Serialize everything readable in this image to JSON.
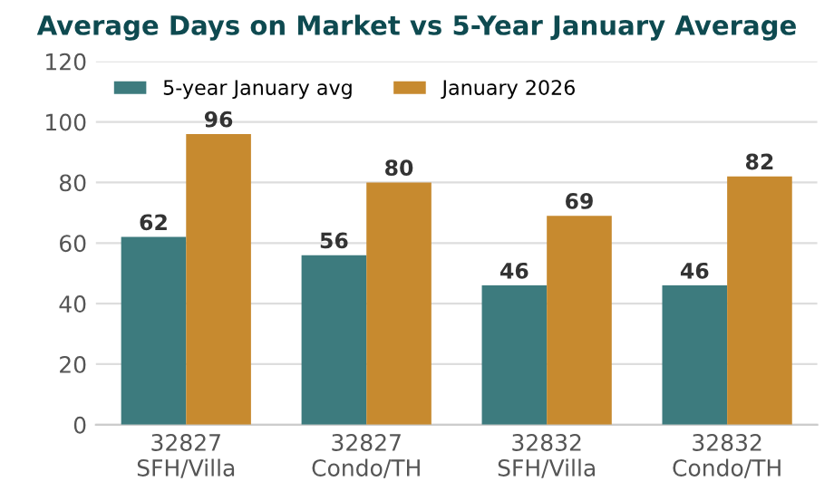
{
  "chart_data": {
    "type": "bar",
    "title": "Average Days on Market vs 5-Year January Average",
    "categories": [
      "32827\nSFH/Villa",
      "32827\nCondo/TH",
      "32832\nSFH/Villa",
      "32832\nCondo/TH"
    ],
    "series": [
      {
        "name": "5-year January avg",
        "color": "#3d7b7e",
        "values": [
          62,
          56,
          46,
          46
        ]
      },
      {
        "name": "January 2026",
        "color": "#c78a2f",
        "values": [
          96,
          80,
          69,
          82
        ]
      }
    ],
    "ylim": [
      0,
      120
    ],
    "yticks": [
      0,
      20,
      40,
      60,
      80,
      100,
      120
    ],
    "grid": "y",
    "legend": "top left",
    "data_labels": true
  }
}
